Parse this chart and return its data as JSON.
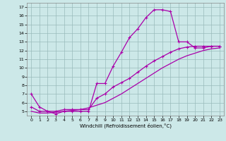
{
  "xlabel": "Windchill (Refroidissement éolien,°C)",
  "bg_color": "#cce8e8",
  "line_color": "#aa00aa",
  "grid_color": "#99bbbb",
  "x_ticks": [
    0,
    1,
    2,
    3,
    4,
    5,
    6,
    7,
    8,
    9,
    10,
    11,
    12,
    13,
    14,
    15,
    16,
    17,
    18,
    19,
    20,
    21,
    22,
    23
  ],
  "y_ticks": [
    5,
    6,
    7,
    8,
    9,
    10,
    11,
    12,
    13,
    14,
    15,
    16,
    17
  ],
  "ylim": [
    4.5,
    17.5
  ],
  "xlim": [
    -0.5,
    23.5
  ],
  "line1": [
    7.0,
    5.5,
    5.0,
    4.7,
    5.0,
    5.0,
    5.0,
    5.0,
    8.2,
    8.2,
    10.2,
    11.8,
    13.5,
    14.5,
    15.8,
    16.7,
    16.7,
    16.5,
    13.0,
    13.0,
    12.3,
    12.3,
    12.5,
    12.5
  ],
  "line2": [
    5.5,
    5.0,
    5.0,
    5.0,
    5.2,
    5.2,
    5.2,
    5.2,
    6.5,
    7.0,
    7.8,
    8.3,
    8.8,
    9.5,
    10.2,
    10.8,
    11.3,
    11.8,
    12.2,
    12.4,
    12.5,
    12.5,
    12.5,
    12.5
  ],
  "line3": [
    5.0,
    4.8,
    4.8,
    4.9,
    5.0,
    5.1,
    5.2,
    5.4,
    5.7,
    6.0,
    6.5,
    7.0,
    7.6,
    8.2,
    8.8,
    9.4,
    10.0,
    10.5,
    11.0,
    11.4,
    11.7,
    12.0,
    12.2,
    12.3
  ]
}
